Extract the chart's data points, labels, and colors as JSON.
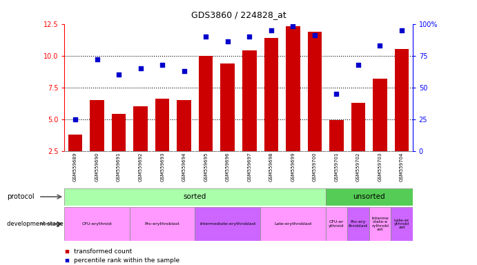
{
  "title": "GDS3860 / 224828_at",
  "samples": [
    "GSM559689",
    "GSM559690",
    "GSM559691",
    "GSM559692",
    "GSM559693",
    "GSM559694",
    "GSM559695",
    "GSM559696",
    "GSM559697",
    "GSM559698",
    "GSM559699",
    "GSM559700",
    "GSM559701",
    "GSM559702",
    "GSM559703",
    "GSM559704"
  ],
  "bar_values": [
    3.8,
    6.5,
    5.4,
    6.0,
    6.6,
    6.5,
    10.0,
    9.4,
    10.4,
    11.4,
    12.3,
    11.9,
    4.95,
    6.3,
    8.2,
    10.5
  ],
  "percentile_values": [
    25,
    72,
    60,
    65,
    68,
    63,
    90,
    86,
    90,
    95,
    98,
    91,
    45,
    68,
    83,
    95
  ],
  "bar_color": "#cc0000",
  "dot_color": "#0000cc",
  "ylim_left": [
    2.5,
    12.5
  ],
  "ylim_right": [
    0,
    100
  ],
  "yticks_left": [
    2.5,
    5.0,
    7.5,
    10.0,
    12.5
  ],
  "yticks_right": [
    0,
    25,
    50,
    75,
    100
  ],
  "ytick_labels_right": [
    "0",
    "25",
    "50",
    "75",
    "100%"
  ],
  "hlines": [
    5.0,
    7.5,
    10.0
  ],
  "dev_stage_segments": [
    {
      "label": "CFU-erythroid",
      "start": 0,
      "end": 3,
      "color": "#ff99ff"
    },
    {
      "label": "Pro-erythroblast",
      "start": 3,
      "end": 6,
      "color": "#ff99ff"
    },
    {
      "label": "Intermediate-erythroblast",
      "start": 6,
      "end": 9,
      "color": "#cc66ff"
    },
    {
      "label": "Late-erythroblast",
      "start": 9,
      "end": 12,
      "color": "#ff99ff"
    },
    {
      "label": "CFU-er\nythroid",
      "start": 12,
      "end": 13,
      "color": "#ff99ff"
    },
    {
      "label": "Pro-ery\nthroblast",
      "start": 13,
      "end": 14,
      "color": "#cc66ff"
    },
    {
      "label": "Interme\ndiate-e\nrythrobl\nast",
      "start": 14,
      "end": 15,
      "color": "#ff99ff"
    },
    {
      "label": "Late-er\nythrobl\nast",
      "start": 15,
      "end": 16,
      "color": "#cc66ff"
    }
  ],
  "background_color": "#ffffff",
  "sorted_color_light": "#aaffaa",
  "sorted_color_dark": "#55cc55",
  "proto_sorted_n": 12,
  "proto_unsorted_n": 4
}
